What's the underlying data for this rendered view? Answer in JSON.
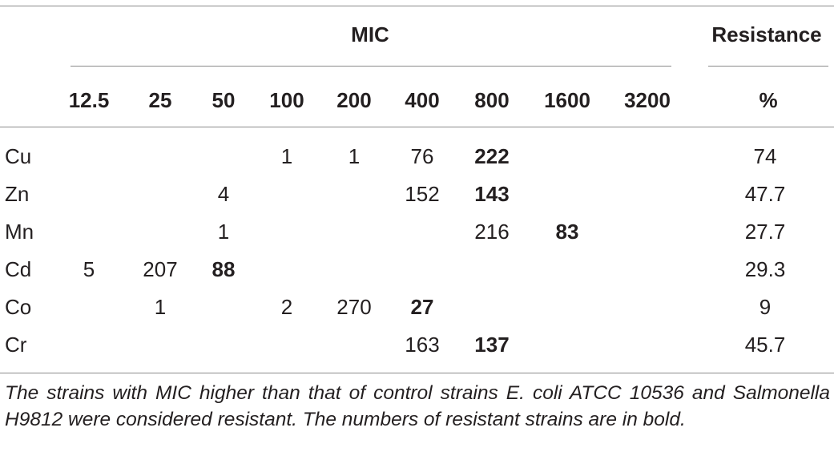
{
  "table": {
    "group_header": "MIC",
    "resistance_header": "Resistance",
    "mic_columns": [
      "12.5",
      "25",
      "50",
      "100",
      "200",
      "400",
      "800",
      "1600",
      "3200"
    ],
    "resistance_unit": "%",
    "rows": [
      {
        "metal": "Cu",
        "cells": [
          "",
          "",
          "",
          "1",
          "1",
          "76",
          "222",
          "",
          ""
        ],
        "bold_index": 6,
        "resistance": "74"
      },
      {
        "metal": "Zn",
        "cells": [
          "",
          "",
          "4",
          "",
          "",
          "152",
          "143",
          "",
          ""
        ],
        "bold_index": 6,
        "resistance": "47.7"
      },
      {
        "metal": "Mn",
        "cells": [
          "",
          "",
          "1",
          "",
          "",
          "",
          "216",
          "83",
          ""
        ],
        "bold_index": 7,
        "resistance": "27.7"
      },
      {
        "metal": "Cd",
        "cells": [
          "5",
          "207",
          "88",
          "",
          "",
          "",
          "",
          "",
          ""
        ],
        "bold_index": 2,
        "resistance": "29.3"
      },
      {
        "metal": "Co",
        "cells": [
          "",
          "1",
          "",
          "2",
          "270",
          "27",
          "",
          "",
          ""
        ],
        "bold_index": 5,
        "resistance": "9"
      },
      {
        "metal": "Cr",
        "cells": [
          "",
          "",
          "",
          "",
          "",
          "163",
          "137",
          "",
          ""
        ],
        "bold_index": 6,
        "resistance": "45.7"
      }
    ],
    "footnote": "The strains with MIC higher than that of control strains E. coli ATCC 10536 and Salmonella H9812 were considered resistant. The numbers of resistant strains are in bold."
  }
}
